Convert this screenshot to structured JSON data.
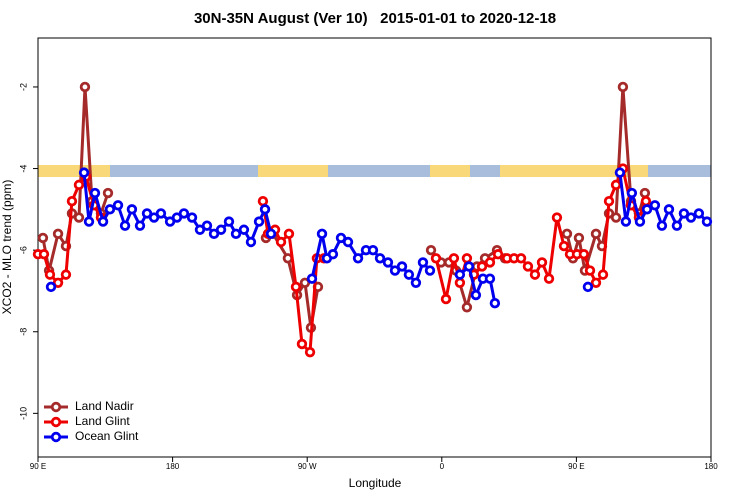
{
  "chart_data": {
    "type": "line",
    "title": "30N-35N August (Ver 10)   2015-01-01 to 2020-12-18",
    "x_label": "Longitude",
    "y_label": "XCO2 - MLO trend (ppm)",
    "xlim": [
      90,
      540
    ],
    "xticks": [
      {
        "value": 90,
        "label": "90 E"
      },
      180,
      {
        "value": 270,
        "label": "90 W"
      },
      {
        "value": 360,
        "label": "0"
      },
      {
        "value": 450,
        "label": "90 E"
      },
      {
        "value": 540,
        "label": "180"
      }
    ],
    "ylim": [
      -11.07,
      -0.8
    ],
    "yticks": [
      -10,
      -8,
      -6,
      -4,
      -2
    ],
    "legend": "bottom-left",
    "series": [
      {
        "name": "Land Nadir",
        "color": "#a52a2a",
        "x": [
          93.3,
          97.4,
          103.4,
          108.7,
          112.7,
          117.4,
          121.4,
          126.1,
          132.1,
          136.8,
          null,
          242.4,
          247.1,
          257.1,
          263.2,
          268.5,
          272.5,
          277.2,
          null,
          352.8,
          359.5,
          364.8,
          369.5,
          376.8,
          383.5,
          388.9,
          396.9,
          402.2,
          null,
          443.7,
          447.7,
          451.7,
          455.7,
          463.1,
          467.1,
          471.8,
          476.5,
          481.1,
          486.5,
          491.8,
          495.8
        ],
        "values": [
          -5.7,
          -6.5,
          -5.6,
          -5.9,
          -5.1,
          -5.2,
          -2.0,
          -4.8,
          -5.1,
          -4.6,
          null,
          -5.7,
          -5.6,
          -6.2,
          -7.1,
          -6.8,
          -7.9,
          -6.9,
          null,
          -6.0,
          -6.3,
          -6.3,
          -6.5,
          -7.4,
          -6.4,
          -6.2,
          -6.0,
          -6.2,
          null,
          -5.6,
          -6.2,
          -5.7,
          -6.5,
          -5.6,
          -5.9,
          -5.1,
          -5.2,
          -2.0,
          -4.8,
          -5.1,
          -4.6
        ]
      },
      {
        "name": "Land Glint",
        "color": "#ee0000",
        "x": [
          90,
          94,
          98,
          103.4,
          108.7,
          112.7,
          117.4,
          122.1,
          127.4,
          132.1,
          null,
          240.4,
          243.8,
          248.5,
          252.5,
          257.8,
          262.5,
          266.5,
          271.9,
          276.5,
          281.2,
          null,
          356.1,
          362.8,
          368.1,
          372.1,
          376.8,
          381.5,
          386.9,
          392.2,
          397.6,
          403.6,
          408.3,
          413,
          417.6,
          422.3,
          427,
          431.7,
          437,
          441.7,
          445.7,
          450.4,
          455,
          459.1,
          463.1,
          467.8,
          471.8,
          476.5,
          481.1,
          486.5,
          491.8,
          496.5
        ],
        "values": [
          -6.1,
          -6.1,
          -6.6,
          -6.8,
          -6.6,
          -4.8,
          -4.4,
          -4.2,
          -4.9,
          -5.2,
          null,
          -4.8,
          -5.6,
          -5.5,
          -5.8,
          -5.6,
          -6.9,
          -8.3,
          -8.5,
          -6.2,
          -6.2,
          null,
          -6.2,
          -7.2,
          -6.2,
          -6.8,
          -6.2,
          -6.6,
          -6.4,
          -6.3,
          -6.1,
          -6.2,
          -6.2,
          -6.2,
          -6.4,
          -6.6,
          -6.3,
          -6.7,
          -5.2,
          -5.9,
          -6.1,
          -6.1,
          -6.1,
          -6.5,
          -6.8,
          -6.6,
          -4.8,
          -4.4,
          -4.0,
          -4.9,
          -5.2,
          -4.8
        ]
      },
      {
        "name": "Ocean Glint",
        "color": "#0000ee",
        "x": [
          98.7,
          null,
          120.8,
          124.1,
          128.1,
          133.5,
          138.1,
          143.5,
          148.2,
          152.8,
          158.2,
          162.9,
          167.6,
          172.2,
          178.3,
          182.9,
          187.6,
          193,
          198.3,
          203,
          207.7,
          212.4,
          217.7,
          222.4,
          227.7,
          232.4,
          237.8,
          241.8,
          245.8,
          null,
          273.2,
          279.9,
          283.2,
          287.2,
          292.6,
          297.3,
          304,
          309.3,
          314,
          318.7,
          324,
          328.7,
          333.4,
          338,
          342.7,
          347.4,
          352.1,
          null,
          372.1,
          378.2,
          382.8,
          387.5,
          392.2,
          395.5,
          null,
          457.7,
          null,
          479.1,
          483.1,
          487.1,
          492.5,
          497.2,
          502.5,
          507.2,
          511.9,
          517.2,
          521.9,
          526.6,
          531.9,
          537.3
        ],
        "values": [
          -6.9,
          null,
          -4.1,
          -5.3,
          -4.6,
          -5.3,
          -5.0,
          -4.9,
          -5.4,
          -5.0,
          -5.4,
          -5.1,
          -5.2,
          -5.1,
          -5.3,
          -5.2,
          -5.1,
          -5.2,
          -5.5,
          -5.4,
          -5.6,
          -5.5,
          -5.3,
          -5.6,
          -5.5,
          -5.8,
          -5.3,
          -5.0,
          -5.6,
          null,
          -6.7,
          -5.6,
          -6.2,
          -6.1,
          -5.7,
          -5.8,
          -6.2,
          -6.0,
          -6.0,
          -6.2,
          -6.3,
          -6.5,
          -6.4,
          -6.6,
          -6.8,
          -6.3,
          -6.5,
          null,
          -6.6,
          -6.4,
          -7.1,
          -6.7,
          -6.7,
          -7.3,
          null,
          -6.9,
          null,
          -4.1,
          -5.3,
          -4.6,
          -5.3,
          -5.0,
          -4.9,
          -5.4,
          -5.0,
          -5.4,
          -5.1,
          -5.2,
          -5.1,
          -5.3
        ]
      }
    ]
  }
}
